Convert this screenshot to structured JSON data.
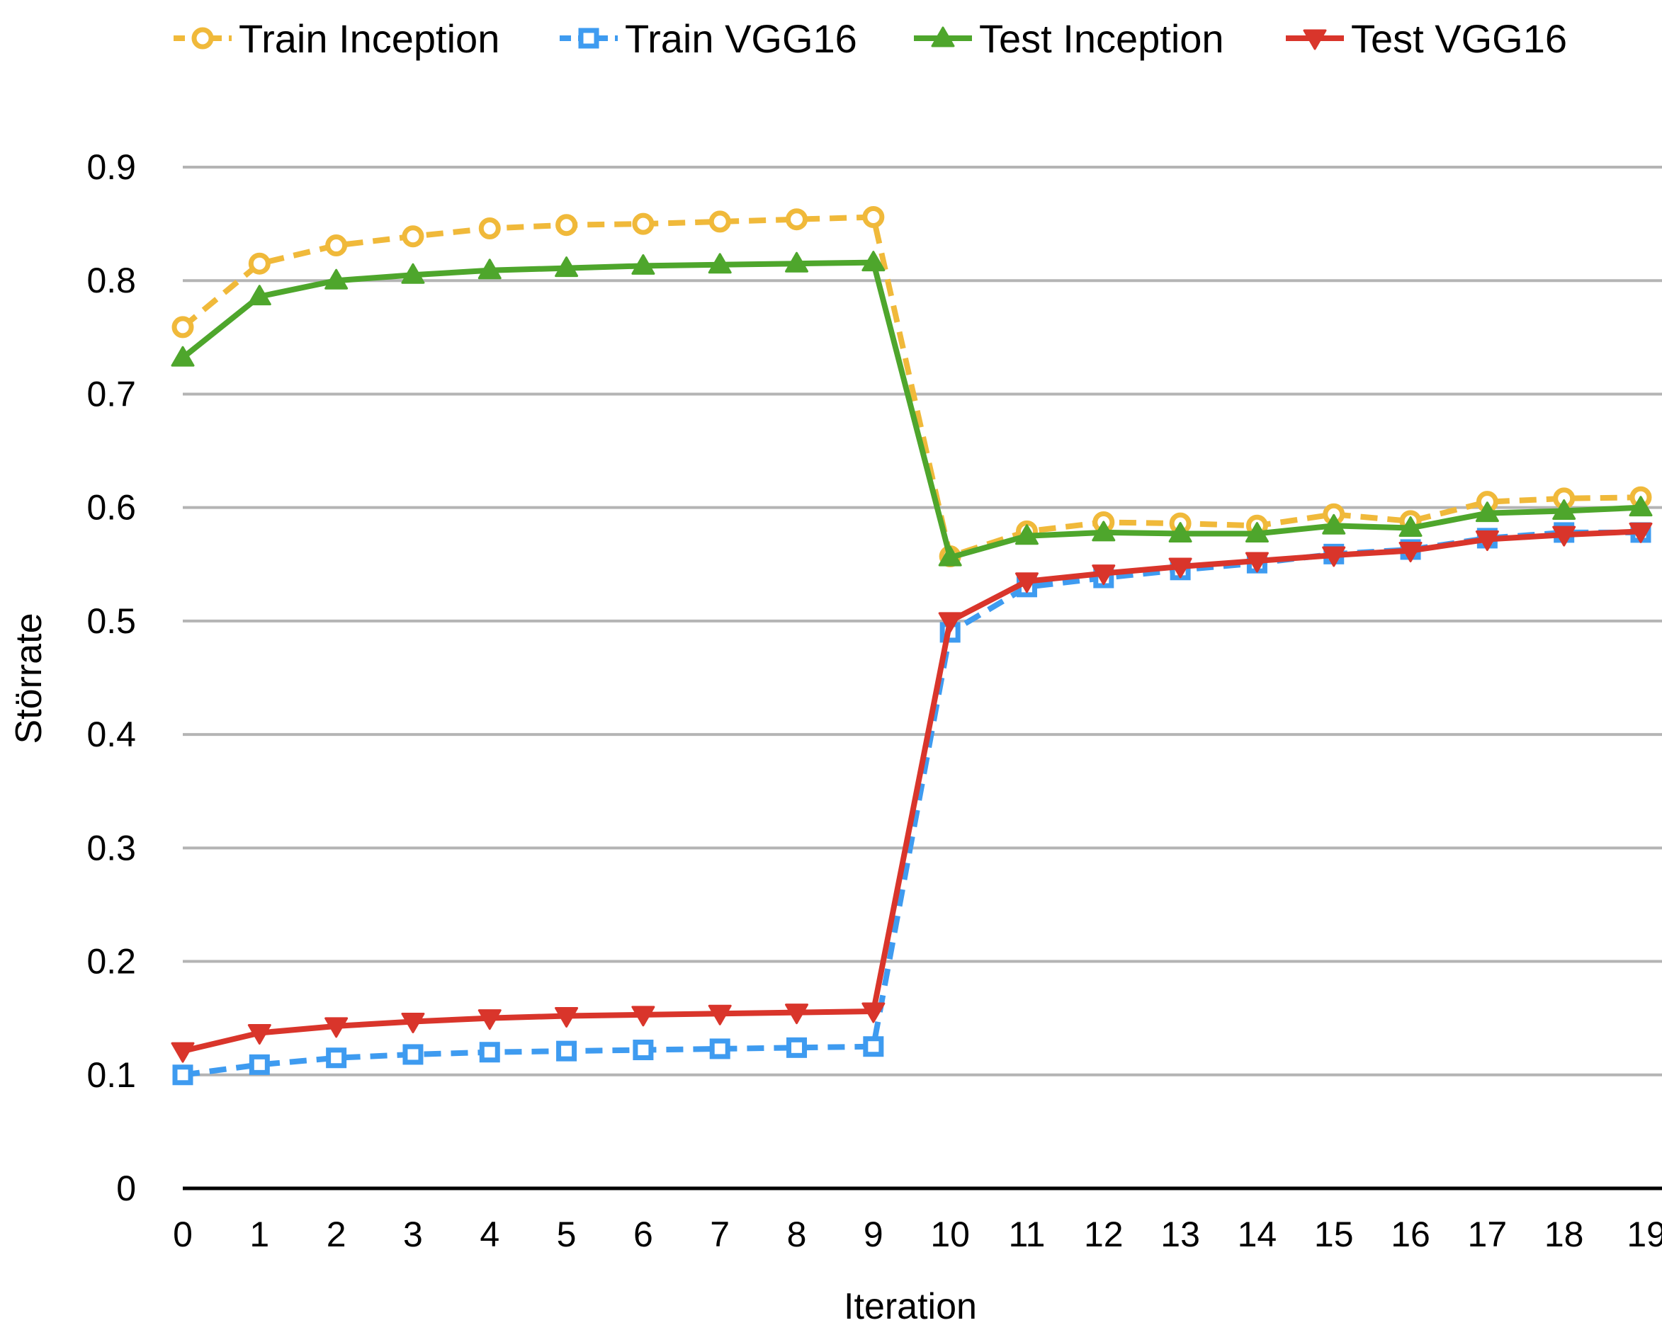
{
  "chart_data": {
    "type": "line",
    "title": "",
    "xlabel": "Iteration",
    "ylabel": "Störrate",
    "categories": [
      "0",
      "1",
      "2",
      "3",
      "4",
      "5",
      "6",
      "7",
      "8",
      "9",
      "10",
      "11",
      "12",
      "13",
      "14",
      "15",
      "16",
      "17",
      "18",
      "19"
    ],
    "ylim": [
      0,
      0.9
    ],
    "yticks": [
      "0",
      "0.1",
      "0.2",
      "0.3",
      "0.4",
      "0.5",
      "0.6",
      "0.7",
      "0.8",
      "0.9"
    ],
    "grid": "horizontal",
    "legend_position": "top",
    "series": [
      {
        "name": "Train Inception",
        "color": "#F0B93A",
        "line_style": "dashed",
        "marker": "circle",
        "values": [
          0.759,
          0.815,
          0.831,
          0.839,
          0.846,
          0.849,
          0.85,
          0.852,
          0.854,
          0.856,
          0.557,
          0.579,
          0.587,
          0.586,
          0.584,
          0.594,
          0.588,
          0.605,
          0.608,
          0.609
        ]
      },
      {
        "name": "Train VGG16",
        "color": "#3E9BF0",
        "line_style": "dashed",
        "marker": "square",
        "values": [
          0.1,
          0.109,
          0.115,
          0.118,
          0.12,
          0.121,
          0.122,
          0.123,
          0.124,
          0.125,
          0.49,
          0.53,
          0.538,
          0.545,
          0.551,
          0.559,
          0.563,
          0.573,
          0.578,
          0.578
        ]
      },
      {
        "name": "Test Inception",
        "color": "#4EA62C",
        "line_style": "solid",
        "marker": "triangle-up",
        "values": [
          0.732,
          0.786,
          0.8,
          0.805,
          0.809,
          0.811,
          0.813,
          0.814,
          0.815,
          0.816,
          0.556,
          0.575,
          0.578,
          0.577,
          0.577,
          0.584,
          0.582,
          0.595,
          0.597,
          0.6
        ]
      },
      {
        "name": "Test VGG16",
        "color": "#D9352B",
        "line_style": "solid",
        "marker": "triangle-down",
        "values": [
          0.121,
          0.137,
          0.143,
          0.147,
          0.15,
          0.152,
          0.153,
          0.154,
          0.155,
          0.156,
          0.5,
          0.535,
          0.542,
          0.548,
          0.553,
          0.558,
          0.562,
          0.572,
          0.576,
          0.579
        ]
      }
    ]
  }
}
